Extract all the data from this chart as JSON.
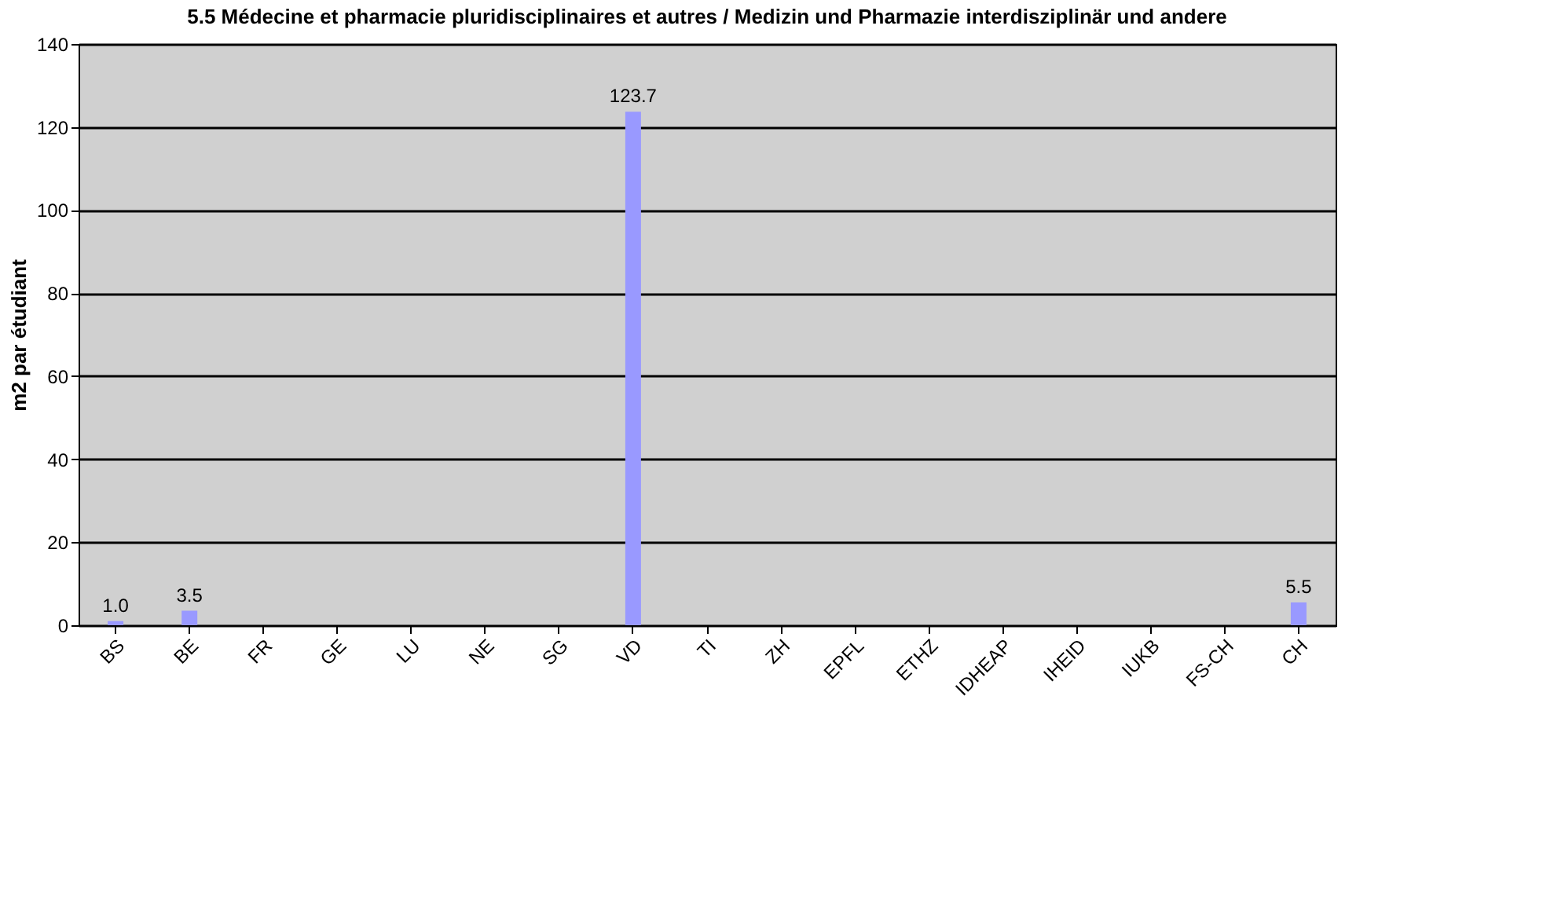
{
  "chart_data": {
    "type": "bar",
    "title": "5.5 Médecine et pharmacie pluridisciplinaires et autres / Medizin und Pharmazie interdisziplinär und andere",
    "ylabel": "m2 par étudiant",
    "categories": [
      "BS",
      "BE",
      "FR",
      "GE",
      "LU",
      "NE",
      "SG",
      "VD",
      "TI",
      "ZH",
      "EPFL",
      "ETHZ",
      "IDHEAP",
      "IHEID",
      "IUKB",
      "FS-CH",
      "CH"
    ],
    "values": [
      1.0,
      3.5,
      null,
      null,
      null,
      null,
      null,
      123.7,
      null,
      null,
      null,
      null,
      null,
      null,
      null,
      null,
      5.5
    ],
    "value_labels": [
      "1.0",
      "3.5",
      null,
      null,
      null,
      null,
      null,
      "123.7",
      null,
      null,
      null,
      null,
      null,
      null,
      null,
      null,
      "5.5"
    ],
    "color": "#9999ff",
    "ylim": [
      0,
      140
    ],
    "yticks": [
      0,
      20,
      40,
      60,
      80,
      100,
      120,
      140
    ],
    "grid": "y"
  }
}
